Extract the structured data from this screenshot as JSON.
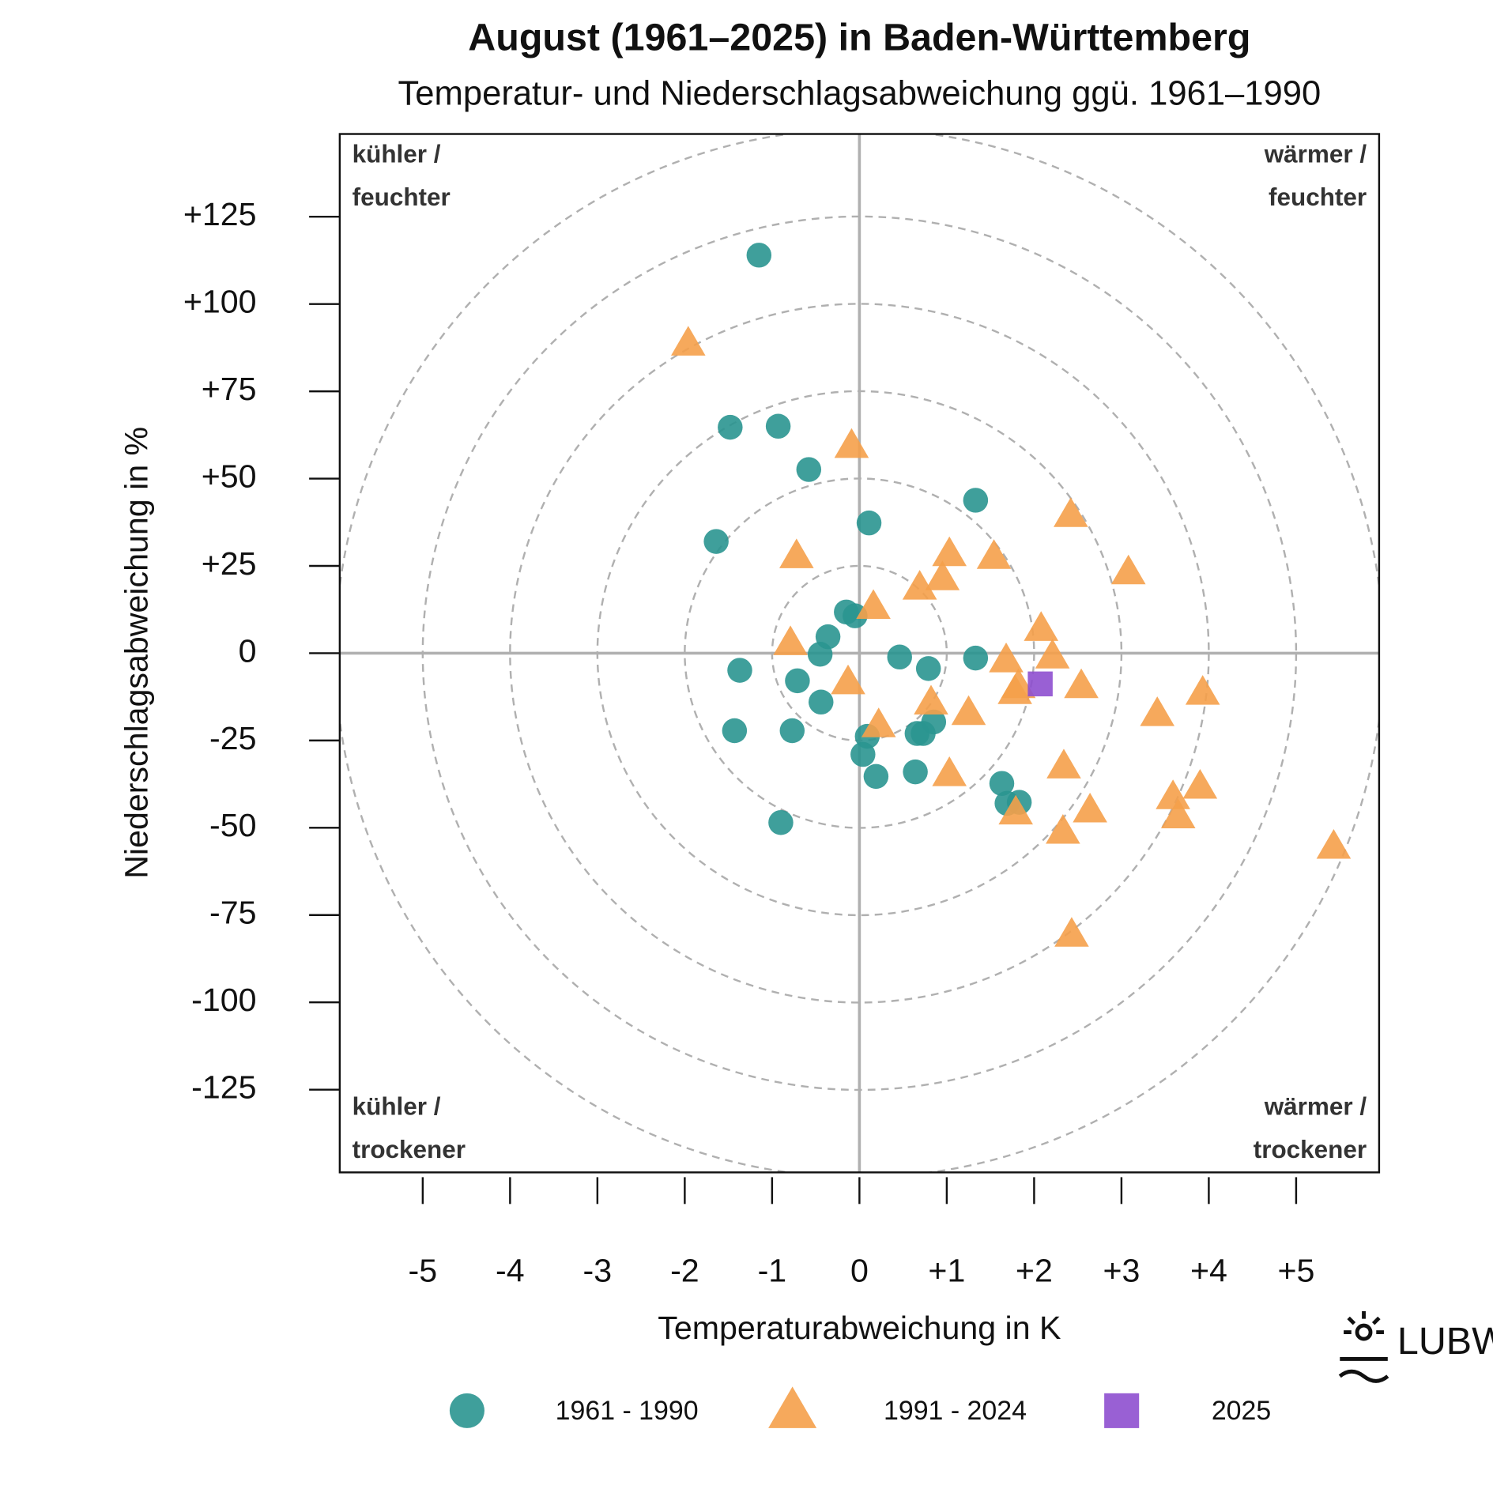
{
  "chart_data": {
    "type": "scatter",
    "title": "August (1961–2025) in Baden-Württemberg",
    "subtitle": "Temperatur- und Niederschlagsabweichung ggü. 1961–1990",
    "x_label": "Temperaturabweichung in K",
    "y_label": "Niederschlagsabweichung in %",
    "xlim": [
      -5.95,
      5.95
    ],
    "ylim": [
      -148.7,
      148.7
    ],
    "xticks": [
      -5,
      -4,
      -3,
      -2,
      -1,
      0,
      {
        "value": 1,
        "label": "+1"
      },
      {
        "value": 2,
        "label": "+2"
      },
      {
        "value": 3,
        "label": "+3"
      },
      {
        "value": 4,
        "label": "+4"
      },
      {
        "value": 5,
        "label": "+5"
      }
    ],
    "yticks": [
      {
        "value": 125,
        "label": "+125"
      },
      {
        "value": 100,
        "label": "+100"
      },
      {
        "value": 75,
        "label": "+75"
      },
      {
        "value": 50,
        "label": "+50"
      },
      {
        "value": 25,
        "label": "+25"
      },
      0,
      -25,
      -50,
      -75,
      -100,
      -125
    ],
    "series": [
      {
        "name": "1961 - 1990",
        "color": "#2a9590",
        "marker": "circle",
        "x": [
          -1.15,
          -1.48,
          -0.93,
          -0.58,
          -1.64,
          0.11,
          1.33,
          -0.15,
          -0.05,
          -0.36,
          -0.45,
          -1.37,
          -0.71,
          -0.44,
          0.46,
          0.79,
          1.33,
          -1.43,
          -0.77,
          0.09,
          0.85,
          0.66,
          0.73,
          0.04,
          0.19,
          0.64,
          1.63,
          1.69,
          1.83,
          -0.9
        ],
        "y": [
          114,
          64.7,
          65,
          52.6,
          32,
          37.3,
          43.8,
          11.8,
          10.7,
          4.7,
          -0.3,
          -4.9,
          -7.9,
          -14,
          -1.1,
          -4.4,
          -1.4,
          -22.2,
          -22.2,
          -23.8,
          -19.7,
          -23,
          -23,
          -29,
          -35.3,
          -34,
          -37.3,
          -43,
          -42.7,
          -48.5
        ]
      },
      {
        "name": "1991 - 2024",
        "color": "#f5a04a",
        "marker": "triangle",
        "x": [
          -1.96,
          -0.09,
          2.42,
          -0.72,
          1.03,
          1.54,
          3.08,
          0.69,
          0.95,
          0.16,
          2.08,
          -0.79,
          1.68,
          2.21,
          -0.13,
          1.82,
          1.78,
          2.54,
          3.93,
          0.82,
          1.25,
          3.41,
          0.22,
          1.03,
          2.34,
          3.9,
          3.59,
          1.79,
          3.65,
          2.64,
          2.33,
          5.43,
          2.43
        ],
        "y": [
          88.8,
          59.5,
          39.7,
          27.9,
          28.5,
          27.7,
          23.3,
          18.9,
          21.6,
          13.4,
          7.1,
          3,
          -1.9,
          -0.8,
          -8.2,
          -9.3,
          -11,
          -9.3,
          -11.2,
          -14,
          -17,
          -17.3,
          -20.5,
          -34.5,
          -32.3,
          -38.1,
          -41.1,
          -45.5,
          -46.6,
          -44.9,
          -51,
          -55.3,
          -80.5
        ]
      },
      {
        "name": "2025",
        "color": "#8e4fcf",
        "marker": "square",
        "x": [
          2.07
        ],
        "y": [
          -8.8
        ]
      }
    ],
    "annotations": [
      {
        "position": "top-left",
        "lines": [
          "kühler /",
          "feuchter"
        ]
      },
      {
        "position": "top-right",
        "lines": [
          "wärmer /",
          "feuchter"
        ]
      },
      {
        "position": "bottom-left",
        "lines": [
          "kühler /",
          "trockener"
        ]
      },
      {
        "position": "bottom-right",
        "lines": [
          "wärmer /",
          "trockener"
        ]
      }
    ],
    "logo": "LUBW"
  }
}
